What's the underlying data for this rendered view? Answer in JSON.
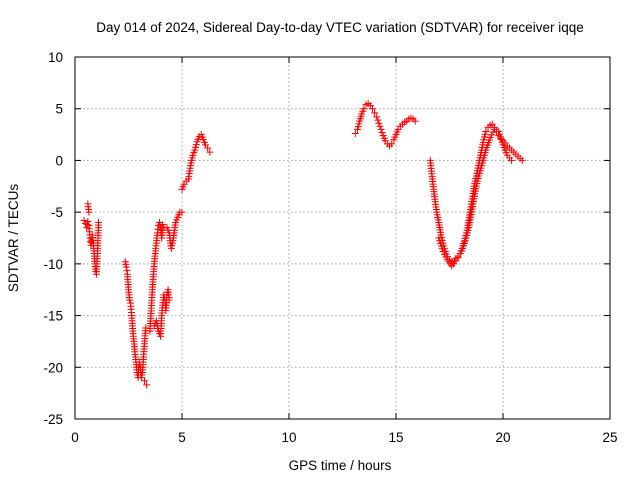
{
  "chart_data": {
    "type": "scatter",
    "title": "Day 014 of 2024, Sidereal Day-to-day VTEC variation (SDTVAR) for receiver iqqe",
    "xlabel": "GPS time / hours",
    "ylabel": "SDTVAR / TECUs",
    "xlim": [
      0,
      25
    ],
    "ylim": [
      -25,
      10
    ],
    "xticks": [
      0,
      5,
      10,
      15,
      20,
      25
    ],
    "yticks": [
      -25,
      -20,
      -15,
      -10,
      -5,
      0,
      5,
      10
    ],
    "grid": true,
    "marker": "+",
    "color": "#ff0000",
    "series": [
      {
        "name": "SDTVAR",
        "segments": [
          {
            "x": [
              0.42,
              0.5,
              0.55,
              0.6,
              0.65,
              0.7,
              0.75,
              0.8,
              0.85,
              0.9,
              0.95,
              1.0,
              1.05,
              1.1
            ],
            "y": [
              -5.8,
              -6.1,
              -6.5,
              -5.9,
              -6.3,
              -7.5,
              -8.2,
              -7.2,
              -8.0,
              -9.0,
              -10.5,
              -11.0,
              -9.0,
              -6.0
            ]
          },
          {
            "x": [
              0.6,
              0.65
            ],
            "y": [
              -4.2,
              -5.0
            ]
          },
          {
            "x": [
              2.35,
              2.4,
              2.45,
              2.5,
              2.55,
              2.6,
              2.65,
              2.7,
              2.75,
              2.8,
              2.85,
              2.9,
              2.95,
              3.0,
              3.05,
              3.1,
              3.15,
              3.2,
              3.3
            ],
            "y": [
              -9.8,
              -10.3,
              -11.0,
              -12.5,
              -13.5,
              -13.8,
              -15.0,
              -16.5,
              -17.5,
              -18.5,
              -19.5,
              -20.5,
              -21.0,
              -19.5,
              -20.0,
              -21.0,
              -20.5,
              -19.0,
              -16.2
            ]
          },
          {
            "x": [
              3.25,
              3.35
            ],
            "y": [
              -21.3,
              -21.7
            ]
          },
          {
            "x": [
              3.5,
              3.55,
              3.6,
              3.65,
              3.7,
              3.75,
              3.8,
              3.85,
              3.9,
              3.95,
              4.0,
              4.05,
              4.1,
              4.15
            ],
            "y": [
              -16.5,
              -14.8,
              -13.0,
              -11.5,
              -10.0,
              -9.0,
              -8.0,
              -7.0,
              -6.3,
              -6.0,
              -6.5,
              -7.5,
              -6.2,
              -6.5
            ]
          },
          {
            "x": [
              3.7,
              3.8,
              3.9,
              4.0,
              4.05,
              4.1,
              4.15,
              4.2,
              4.25,
              4.3,
              4.35,
              4.4
            ],
            "y": [
              -16.0,
              -15.5,
              -16.5,
              -17.0,
              -15.0,
              -14.0,
              -13.0,
              -13.5,
              -14.5,
              -13.0,
              -12.5,
              -13.5
            ]
          },
          {
            "x": [
              4.3,
              4.4,
              4.5,
              4.6,
              4.7,
              4.8,
              4.9,
              5.0
            ],
            "y": [
              -6.5,
              -7.0,
              -8.5,
              -7.5,
              -6.0,
              -5.5,
              -5.0,
              -5.0
            ]
          },
          {
            "x": [
              5.0,
              5.1,
              5.2,
              5.3,
              5.4,
              5.5,
              5.6,
              5.7,
              5.8,
              5.9,
              6.0,
              6.1,
              6.2,
              6.3
            ],
            "y": [
              -2.8,
              -2.3,
              -2.0,
              -1.8,
              -0.5,
              0.5,
              1.0,
              1.8,
              2.3,
              2.5,
              2.0,
              1.5,
              1.2,
              0.8
            ]
          },
          {
            "x": [
              13.1,
              13.2,
              13.3,
              13.4,
              13.5,
              13.6,
              13.7,
              13.8,
              13.9,
              14.0,
              14.1,
              14.2,
              14.3,
              14.4,
              14.5,
              14.6,
              14.7,
              14.8,
              14.9,
              15.0,
              15.1,
              15.2,
              15.3,
              15.4,
              15.5,
              15.6,
              15.7,
              15.8,
              15.9
            ],
            "y": [
              2.6,
              3.0,
              3.8,
              4.5,
              5.0,
              5.4,
              5.5,
              5.3,
              5.0,
              4.6,
              4.2,
              3.6,
              3.0,
              2.4,
              1.9,
              1.6,
              1.4,
              1.6,
              2.0,
              2.5,
              3.0,
              3.3,
              3.5,
              3.7,
              3.8,
              4.0,
              4.1,
              4.0,
              3.8
            ]
          },
          {
            "x": [
              16.6,
              16.7,
              16.8,
              16.9,
              17.0,
              17.1,
              17.2,
              17.3,
              17.4,
              17.5,
              17.6,
              17.7,
              17.8,
              17.9,
              18.0,
              18.1,
              18.2,
              18.3,
              18.4,
              18.5,
              18.6,
              18.7,
              18.8,
              18.9,
              19.0,
              19.1,
              19.2,
              19.3,
              19.4,
              19.5,
              19.6,
              19.7,
              19.8,
              19.9,
              20.0,
              20.1,
              20.2,
              20.3,
              20.4,
              20.5,
              20.6,
              20.7,
              20.8,
              20.9
            ],
            "y": [
              0.0,
              -1.8,
              -3.5,
              -5.0,
              -6.0,
              -7.2,
              -8.0,
              -8.8,
              -9.3,
              -9.6,
              -9.8,
              -10.0,
              -9.7,
              -9.4,
              -9.0,
              -8.5,
              -7.8,
              -7.0,
              -5.8,
              -4.5,
              -3.2,
              -2.0,
              -1.0,
              0.0,
              1.0,
              2.0,
              2.8,
              3.2,
              3.4,
              3.5,
              3.2,
              2.8,
              2.4,
              2.1,
              1.9,
              1.7,
              1.4,
              1.2,
              1.0,
              0.8,
              0.6,
              0.4,
              0.2,
              0.0
            ]
          },
          {
            "x": [
              17.0,
              17.2,
              17.4,
              17.6,
              17.8,
              18.0,
              18.2,
              18.4,
              18.6,
              18.8,
              19.0,
              19.2,
              19.4,
              19.6,
              19.8,
              20.0,
              20.2,
              20.4
            ],
            "y": [
              -7.5,
              -8.8,
              -9.6,
              -10.2,
              -9.5,
              -9.0,
              -8.0,
              -6.5,
              -4.2,
              -2.0,
              -0.5,
              1.0,
              2.2,
              3.0,
              2.8,
              1.5,
              0.5,
              0.0
            ]
          }
        ]
      }
    ]
  }
}
